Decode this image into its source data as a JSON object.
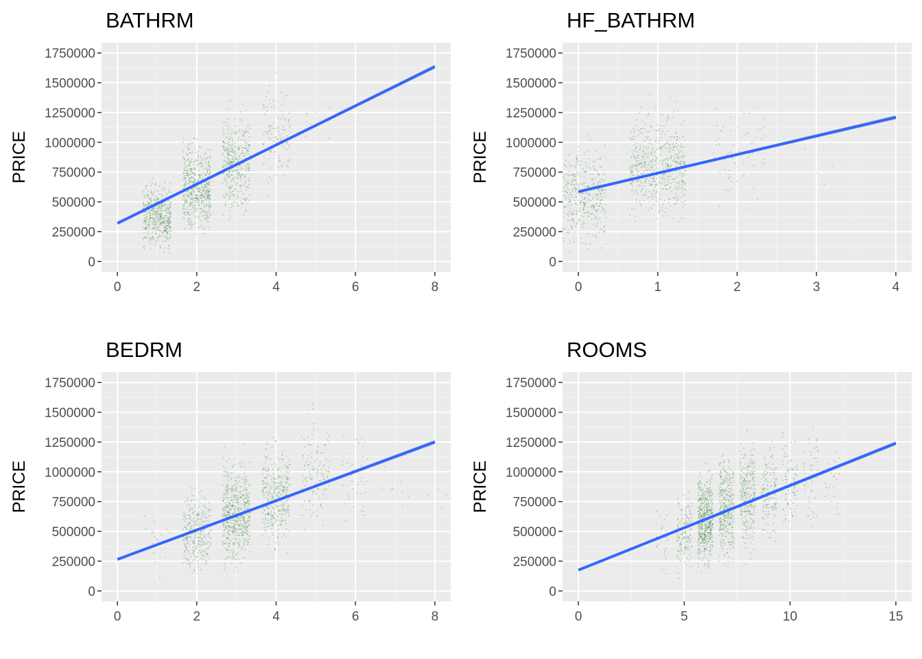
{
  "colors": {
    "panel_background": "#ebebeb",
    "grid_major": "#ffffff",
    "grid_minor": "#f5f5f5",
    "points": "#2e7d32",
    "fit_line": "#3366ff",
    "confidence_band": "#999999",
    "tick_text": "#4d4d4d"
  },
  "chart_data": [
    {
      "type": "scatter",
      "title": "BATHRM",
      "xlabel": "",
      "ylabel": "PRICE",
      "xlim": [
        0,
        8
      ],
      "ylim": [
        0,
        1750000
      ],
      "x_ticks": [
        0,
        2,
        4,
        6,
        8
      ],
      "x_tick_labels": [
        "0",
        "2",
        "4",
        "6",
        "8"
      ],
      "y_ticks": [
        0,
        250000,
        500000,
        750000,
        1000000,
        1250000,
        1500000,
        1750000
      ],
      "y_tick_labels": [
        "0",
        "250000",
        "500000",
        "750000",
        "1000000",
        "1250000",
        "1500000",
        "1750000"
      ],
      "point_groups": [
        {
          "x": 1,
          "y_center": 380000,
          "y_spread": 240000,
          "count": 520,
          "jitter": 0.35
        },
        {
          "x": 2,
          "y_center": 620000,
          "y_spread": 330000,
          "count": 560,
          "jitter": 0.35
        },
        {
          "x": 3,
          "y_center": 820000,
          "y_spread": 360000,
          "count": 420,
          "jitter": 0.35
        },
        {
          "x": 4,
          "y_center": 1050000,
          "y_spread": 380000,
          "count": 120,
          "jitter": 0.35
        },
        {
          "x": 5,
          "y_center": 1150000,
          "y_spread": 300000,
          "count": 8,
          "jitter": 0.35
        }
      ],
      "fit": {
        "x": [
          0,
          8
        ],
        "y": [
          320000,
          1635000
        ]
      }
    },
    {
      "type": "scatter",
      "title": "HF_BATHRM",
      "xlabel": "",
      "ylabel": "PRICE",
      "xlim": [
        0,
        4
      ],
      "ylim": [
        0,
        1750000
      ],
      "x_ticks": [
        0,
        1,
        2,
        3,
        4
      ],
      "x_tick_labels": [
        "0",
        "1",
        "2",
        "3",
        "4"
      ],
      "y_ticks": [
        0,
        250000,
        500000,
        750000,
        1000000,
        1250000,
        1500000,
        1750000
      ],
      "y_tick_labels": [
        "0",
        "250000",
        "500000",
        "750000",
        "1000000",
        "1250000",
        "1500000",
        "1750000"
      ],
      "point_groups": [
        {
          "x": 0,
          "y_center": 560000,
          "y_spread": 360000,
          "count": 520,
          "jitter": 0.35
        },
        {
          "x": 1,
          "y_center": 800000,
          "y_spread": 400000,
          "count": 600,
          "jitter": 0.35
        },
        {
          "x": 2,
          "y_center": 900000,
          "y_spread": 380000,
          "count": 70,
          "jitter": 0.35
        },
        {
          "x": 3,
          "y_center": 950000,
          "y_spread": 300000,
          "count": 6,
          "jitter": 0.35
        }
      ],
      "fit": {
        "x": [
          0,
          4
        ],
        "y": [
          585000,
          1210000
        ]
      }
    },
    {
      "type": "scatter",
      "title": "BEDRM",
      "xlabel": "",
      "ylabel": "PRICE",
      "xlim": [
        0,
        8
      ],
      "ylim": [
        0,
        1750000
      ],
      "x_ticks": [
        0,
        2,
        4,
        6,
        8
      ],
      "x_tick_labels": [
        "0",
        "2",
        "4",
        "6",
        "8"
      ],
      "y_ticks": [
        0,
        250000,
        500000,
        750000,
        1000000,
        1250000,
        1500000,
        1750000
      ],
      "y_tick_labels": [
        "0",
        "250000",
        "500000",
        "750000",
        "1000000",
        "1250000",
        "1500000",
        "1750000"
      ],
      "point_groups": [
        {
          "x": 1,
          "y_center": 450000,
          "y_spread": 250000,
          "count": 20,
          "jitter": 0.35
        },
        {
          "x": 2,
          "y_center": 500000,
          "y_spread": 300000,
          "count": 330,
          "jitter": 0.35
        },
        {
          "x": 3,
          "y_center": 650000,
          "y_spread": 380000,
          "count": 620,
          "jitter": 0.35
        },
        {
          "x": 4,
          "y_center": 800000,
          "y_spread": 400000,
          "count": 380,
          "jitter": 0.35
        },
        {
          "x": 5,
          "y_center": 1000000,
          "y_spread": 400000,
          "count": 140,
          "jitter": 0.35
        },
        {
          "x": 6,
          "y_center": 1000000,
          "y_spread": 400000,
          "count": 40,
          "jitter": 0.35
        },
        {
          "x": 7,
          "y_center": 1000000,
          "y_spread": 350000,
          "count": 10,
          "jitter": 0.35
        },
        {
          "x": 8,
          "y_center": 900000,
          "y_spread": 300000,
          "count": 4,
          "jitter": 0.35
        }
      ],
      "fit": {
        "x": [
          0,
          8
        ],
        "y": [
          265000,
          1250000
        ]
      }
    },
    {
      "type": "scatter",
      "title": "ROOMS",
      "xlabel": "",
      "ylabel": "PRICE",
      "xlim": [
        0,
        15
      ],
      "ylim": [
        0,
        1750000
      ],
      "x_ticks": [
        0,
        5,
        10,
        15
      ],
      "x_tick_labels": [
        "0",
        "5",
        "10",
        "15"
      ],
      "y_ticks": [
        0,
        250000,
        500000,
        750000,
        1000000,
        1250000,
        1500000,
        1750000
      ],
      "y_tick_labels": [
        "0",
        "250000",
        "500000",
        "750000",
        "1000000",
        "1250000",
        "1500000",
        "1750000"
      ],
      "point_groups": [
        {
          "x": 4,
          "y_center": 450000,
          "y_spread": 250000,
          "count": 30,
          "jitter": 0.35
        },
        {
          "x": 5,
          "y_center": 500000,
          "y_spread": 300000,
          "count": 170,
          "jitter": 0.35
        },
        {
          "x": 6,
          "y_center": 600000,
          "y_spread": 350000,
          "count": 560,
          "jitter": 0.35
        },
        {
          "x": 7,
          "y_center": 700000,
          "y_spread": 380000,
          "count": 380,
          "jitter": 0.35
        },
        {
          "x": 8,
          "y_center": 800000,
          "y_spread": 400000,
          "count": 300,
          "jitter": 0.35
        },
        {
          "x": 9,
          "y_center": 850000,
          "y_spread": 400000,
          "count": 150,
          "jitter": 0.35
        },
        {
          "x": 10,
          "y_center": 900000,
          "y_spread": 400000,
          "count": 90,
          "jitter": 0.35
        },
        {
          "x": 11,
          "y_center": 950000,
          "y_spread": 400000,
          "count": 50,
          "jitter": 0.35
        },
        {
          "x": 12,
          "y_center": 950000,
          "y_spread": 350000,
          "count": 25,
          "jitter": 0.35
        }
      ],
      "fit": {
        "x": [
          0,
          15
        ],
        "y": [
          175000,
          1240000
        ]
      }
    }
  ]
}
